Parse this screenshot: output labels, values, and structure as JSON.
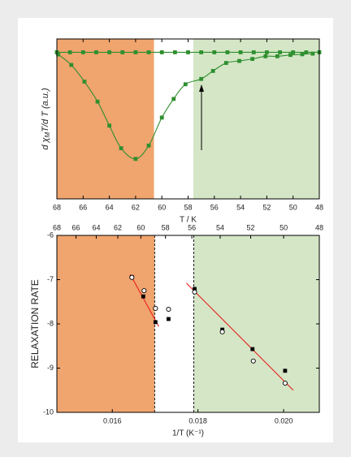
{
  "chart_data": [
    {
      "type": "line",
      "xlabel": "T / K",
      "ylabel_parts": [
        "d χ",
        "M",
        "T/d T (a.u.)"
      ],
      "xlim": [
        68,
        48
      ],
      "xticks": [
        68,
        66,
        64,
        62,
        60,
        58,
        56,
        54,
        52,
        50,
        48
      ],
      "ylim": [
        -1.1,
        0.1
      ],
      "regions": [
        {
          "x": [
            68,
            60.6
          ],
          "color": "#f0a46e"
        },
        {
          "x": [
            57.6,
            48
          ],
          "color": "#d4e6c6"
        }
      ],
      "series": [
        {
          "color": "#2f8f2f",
          "marker": "square",
          "line": true,
          "x": [
            68,
            67,
            66,
            65,
            64,
            63,
            62,
            61,
            60,
            59,
            58,
            57,
            56,
            55,
            54,
            53,
            52,
            51,
            50,
            49,
            48
          ],
          "values": [
            0,
            0,
            0,
            0,
            0,
            0,
            0,
            0,
            0,
            0,
            0,
            0,
            0,
            0,
            0,
            0,
            0,
            0,
            0,
            0,
            0
          ]
        },
        {
          "color": "#2f8f2f",
          "marker": "square",
          "line": true,
          "x": [
            67.9,
            66.9,
            65.9,
            64.9,
            64.0,
            63.1,
            62.0,
            61.0,
            60.0,
            59.1,
            58.2,
            57.0,
            56.1,
            55.1,
            54.1,
            53.1,
            52.1,
            51.2,
            50.2,
            49.3,
            48.5
          ],
          "values": [
            -0.016,
            -0.095,
            -0.22,
            -0.37,
            -0.55,
            -0.72,
            -0.8,
            -0.7,
            -0.49,
            -0.35,
            -0.24,
            -0.2,
            -0.14,
            -0.08,
            -0.065,
            -0.05,
            -0.03,
            -0.03,
            -0.02,
            -0.015,
            -0.01
          ]
        }
      ]
    },
    {
      "type": "scatter",
      "xlabel": "1/T (K⁻¹)",
      "ylabel": "RELAXATION RATE",
      "xlim": [
        0.014706,
        0.020833
      ],
      "xticks": [
        0.016,
        0.018,
        {
          "value": 0.02,
          "label": "0.020"
        }
      ],
      "x2ticks": [
        68,
        66,
        64,
        62,
        60,
        58,
        56,
        54,
        52,
        50,
        48
      ],
      "x2scale": "reciprocal",
      "ylim": [
        -10,
        -6
      ],
      "yticks": [
        -6,
        -7,
        -8,
        -9,
        -10
      ],
      "regions": [
        {
          "x": [
            0.014706,
            0.016989
          ],
          "color": "#f0a46e"
        },
        {
          "x": [
            0.017903,
            0.020833
          ],
          "color": "#d4e6c6"
        }
      ],
      "vlines": [
        0.016989,
        0.017903
      ],
      "series": [
        {
          "color": "#e8201c",
          "line": true,
          "x": [
            0.016419,
            0.017085
          ],
          "values": [
            -6.88,
            -8.06
          ]
        },
        {
          "color": "#e8201c",
          "line": true,
          "x": [
            0.017731,
            0.020224
          ],
          "values": [
            -7.08,
            -9.5
          ]
        },
        {
          "color": "#000000",
          "marker": "square",
          "x": [
            0.016457,
            0.016723,
            0.017008,
            0.017313,
            0.017922,
            0.018569,
            0.019273,
            0.020034
          ],
          "values": [
            -6.94,
            -7.38,
            -7.96,
            -7.89,
            -7.21,
            -8.13,
            -8.57,
            -9.06
          ]
        },
        {
          "color": "#000000",
          "marker": "circle",
          "x": [
            0.016457,
            0.016742,
            0.017008,
            0.017313,
            0.017922,
            0.018569,
            0.019292,
            0.020034
          ],
          "values": [
            -6.95,
            -7.25,
            -7.65,
            -7.67,
            -7.28,
            -8.18,
            -8.84,
            -9.34
          ]
        }
      ]
    }
  ]
}
